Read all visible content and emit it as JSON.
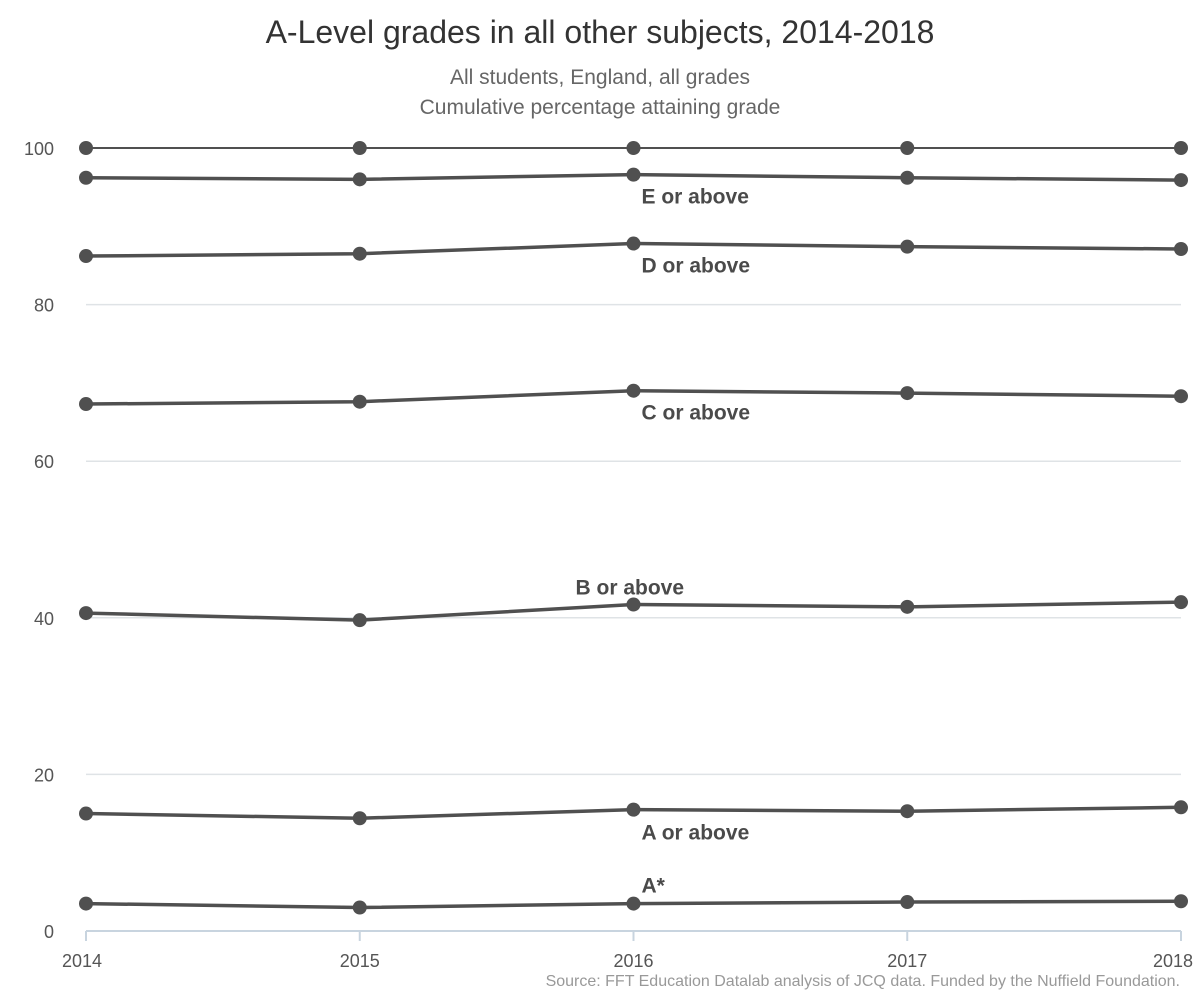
{
  "chart_data": {
    "type": "line",
    "title": "A-Level grades in all other subjects, 2014-2018",
    "subtitle": [
      "All students, England, all grades",
      "Cumulative percentage attaining grade"
    ],
    "source": "Source: FFT Education Datalab analysis of JCQ data. Funded by the Nuffield Foundation.",
    "x": [
      "2014",
      "2015",
      "2016",
      "2017",
      "2018"
    ],
    "ylim": [
      0,
      100
    ],
    "yticks": [
      0,
      20,
      40,
      60,
      80,
      100
    ],
    "grid": true,
    "series": [
      {
        "name": "",
        "values": [
          100,
          100,
          100,
          100,
          100
        ]
      },
      {
        "name": "E or above",
        "values": [
          96.2,
          96.0,
          96.6,
          96.2,
          95.9
        ]
      },
      {
        "name": "D or above",
        "values": [
          86.2,
          86.5,
          87.8,
          87.4,
          87.1
        ]
      },
      {
        "name": "C or above",
        "values": [
          67.3,
          67.6,
          69.0,
          68.7,
          68.3
        ]
      },
      {
        "name": "B or above",
        "values": [
          40.6,
          39.7,
          41.7,
          41.4,
          42.0
        ]
      },
      {
        "name": "A or above",
        "values": [
          15.0,
          14.4,
          15.5,
          15.3,
          15.8
        ]
      },
      {
        "name": "A*",
        "values": [
          3.5,
          3.0,
          3.5,
          3.7,
          3.8
        ]
      }
    ],
    "colors": {
      "line": "#505050",
      "grid": "#dfe3e6",
      "axis": "#c8d4df"
    }
  }
}
